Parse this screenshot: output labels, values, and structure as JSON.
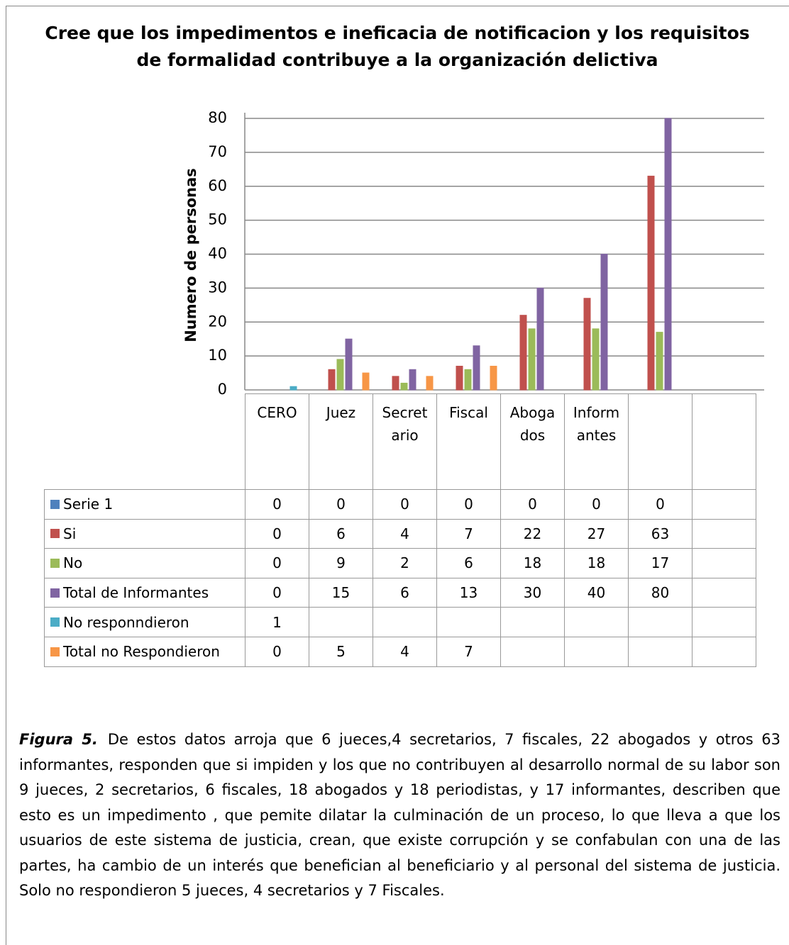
{
  "chart_data": {
    "type": "bar",
    "title": "Cree que los impedimentos e ineficacia de notificacion y los requisitos de formalidad contribuye a la organización delictiva",
    "y_label": "Numero de personas",
    "categories": [
      "CERO",
      "Juez",
      "Secretario",
      "Fiscal",
      "Abogados",
      "Informantes",
      null,
      null
    ],
    "series": [
      {
        "name": "Serie 1",
        "color": "#4f81bd",
        "values": [
          0,
          0,
          0,
          0,
          0,
          0,
          0,
          null
        ]
      },
      {
        "name": "Si",
        "color": "#c0504d",
        "values": [
          0,
          6,
          4,
          7,
          22,
          27,
          63,
          null
        ]
      },
      {
        "name": "No",
        "color": "#9bbb59",
        "values": [
          0,
          9,
          2,
          6,
          18,
          18,
          17,
          null
        ]
      },
      {
        "name": "Total de Informantes",
        "color": "#8064a2",
        "values": [
          0,
          15,
          6,
          13,
          30,
          40,
          80,
          null
        ]
      },
      {
        "name": "No responndieron",
        "color": "#4bacc6",
        "values": [
          1,
          null,
          null,
          null,
          null,
          null,
          null,
          null
        ]
      },
      {
        "name": "Total no Respondieron",
        "color": "#f79646",
        "values": [
          0,
          5,
          4,
          7,
          null,
          null,
          null,
          null
        ]
      }
    ],
    "ylim": [
      0,
      80
    ],
    "yticks": [
      0,
      10,
      20,
      30,
      40,
      50,
      60,
      70,
      80
    ],
    "grid": true
  },
  "caption": {
    "label": "Figura 5.",
    "text": "De estos datos arroja que 6 jueces,4 secretarios, 7 fiscales, 22 abogados y otros 63 informantes, responden que si impiden y  los que no contribuyen al desarrollo normal de su labor son 9   jueces, 2 secretarios, 6 fiscales,  18  abogados y 18 periodistas, y 17 informantes, describen que esto es un impedimento , que pemite dilatar la culminación de un proceso, lo que lleva a que los usuarios de este sistema de justicia, crean, que existe  corrupción y se  confabulan con una de las partes,  ha cambio de un interés que benefician al beneficiario y al personal del sistema de justicia.  Solo no respondieron 5 jueces, 4 secretarios y 7 Fiscales."
  }
}
